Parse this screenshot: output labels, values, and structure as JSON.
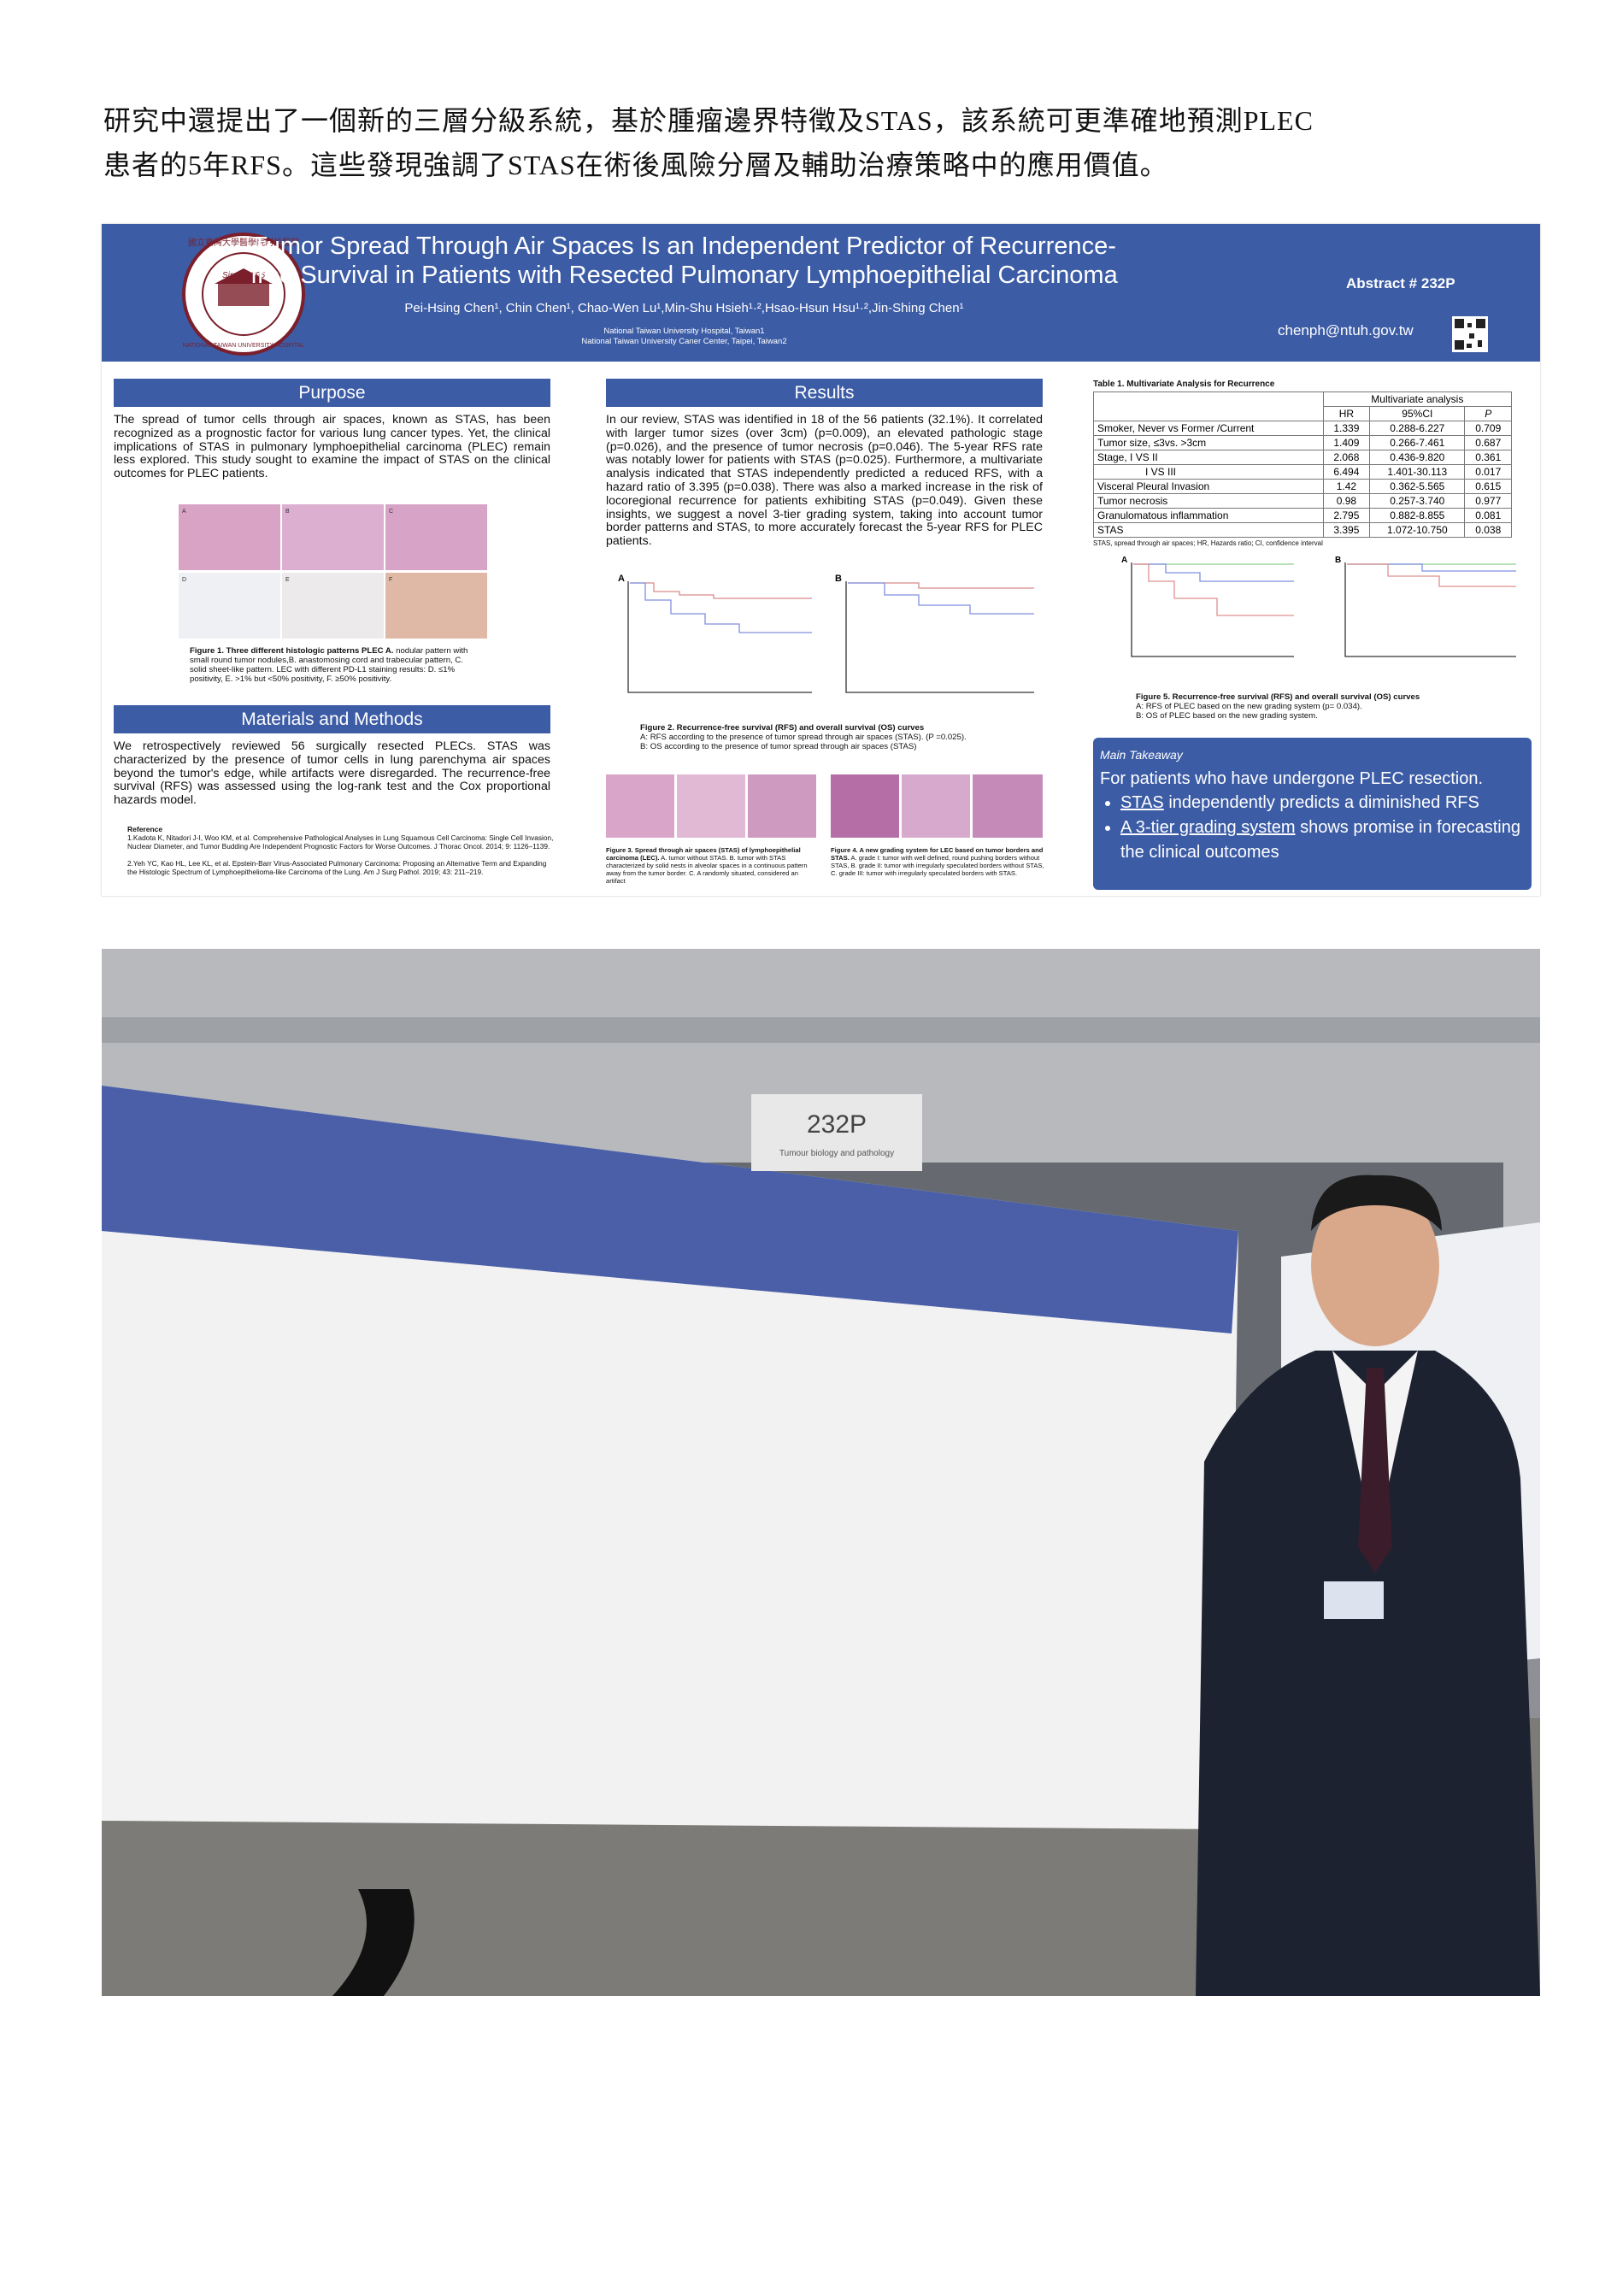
{
  "intro": [
    "研究中還提出了一個新的三層分級系統，基於腫瘤邊界特徵及STAS，該系統可更準確地預測PLEC",
    "患者的5年RFS。這些發現強調了STAS在術後風險分層及輔助治療策略中的應用價值。"
  ],
  "poster": {
    "title": [
      "Tumor Spread Through Air Spaces Is an Independent Predictor of Recurrence-",
      "free Survival in Patients with Resected Pulmonary Lymphoepithelial Carcinoma"
    ],
    "authors": "Pei-Hsing Chen¹, Chin Chen¹, Chao-Wen Lu¹,Min-Shu Hsieh¹·²,Hsao-Hsun Hsu¹·²,Jin-Shing Chen¹",
    "affiliations": [
      "National Taiwan University Hospital, Taiwan1",
      "National Taiwan University Caner Center, Taipei, Taiwan2"
    ],
    "abstract": "Abstract # 232P",
    "email": "chenph@ntuh.gov.tw",
    "logo": {
      "top": "國立臺灣大學醫學院附設醫院",
      "since": "Since 1895",
      "bottom": "NATIONAL TAIWAN UNIVERSITY HOSPITAL"
    },
    "purpose": {
      "heading": "Purpose",
      "text": "The spread of tumor cells through air spaces, known as STAS, has been recognized as a prognostic factor for various lung cancer types. Yet, the clinical implications of STAS in pulmonary lymphoepithelial carcinoma (PLEC) remain less explored. This study sought to examine the impact of STAS on the clinical outcomes for PLEC patients."
    },
    "figure1": {
      "panels": [
        "A",
        "B",
        "C",
        "D",
        "E",
        "F"
      ],
      "caption_title": "Figure 1.  Three different histologic patterns PLEC A.",
      "caption": " nodular pattern with small round tumor nodules,B. anastomosing cord and trabecular pattern, C. solid sheet-like pattern. LEC with different PD-L1 staining results: D. ≤1% positivity, E. >1% but <50% positivity, F. ≥50% positivity."
    },
    "methods": {
      "heading": "Materials and Methods",
      "text": "We retrospectively reviewed 56 surgically resected PLECs. STAS was characterized by the presence of tumor cells in lung parenchyma air spaces beyond the tumor's edge, while artifacts were disregarded. The recurrence-free survival (RFS) was assessed using the log-rank test and the Cox proportional hazards model."
    },
    "references": {
      "heading": "Reference",
      "items": [
        "1.Kadota K, Nitadori J-I, Woo KM, et al. Comprehensive Pathological Analyses in Lung Squamous Cell Carcinoma: Single Cell Invasion, Nuclear Diameter, and Tumor Budding Are Independent Prognostic Factors for Worse Outcomes. J Thorac Oncol. 2014; 9: 1126–1139.",
        "2.Yeh YC, Kao HL, Lee KL, et al. Epstein-Barr Virus-Associated Pulmonary Carcinoma: Proposing an Alternative Term and Expanding the Histologic Spectrum of Lymphoepithelioma-like Carcinoma of the Lung. Am J Surg Pathol. 2019; 43: 211–219."
      ]
    },
    "results": {
      "heading": "Results",
      "text": "In our review, STAS was identified in 18 of the 56 patients (32.1%). It correlated with larger tumor sizes (over 3cm) (p=0.009), an elevated pathologic stage (p=0.026), and the presence of tumor necrosis (p=0.046). The 5-year RFS rate was notably lower for patients with STAS (p=0.025). Furthermore, a multivariate analysis indicated that STAS independently predicted a reduced RFS, with a hazard ratio of 3.395 (p=0.038). There was also a marked increase in the risk of locoregional recurrence for patients exhibiting STAS (p=0.049). Given these insights, we suggest a novel 3-tier grading system, taking into account tumor border patterns and STAS, to more accurately forecast the 5-year RFS for PLEC patients."
    },
    "figure2": {
      "caption_title": "Figure 2. Recurrence-free survival (RFS) and overall survival (OS) curves",
      "lines": [
        "A: RFS according to the presence of tumor spread through air spaces (STAS). (P =0.025).",
        "B: OS according to the presence of tumor spread through air spaces (STAS)"
      ]
    },
    "figure3": {
      "caption_title": "Figure 3. Spread through air spaces (STAS) of lymphoepithelial carcinoma (LEC).",
      "caption": " A. tumor without STAS. B. tumor with STAS characterized by solid nests in alveolar spaces in a continuous pattern away from the tumor border. C. A randomly situated, considered an artifact"
    },
    "figure4": {
      "caption_title": "Figure 4. A new grading system for LEC based on tumor borders and STAS.",
      "caption": " A. grade I: tumor with well defined, round pushing borders without STAS, B. grade II: tumor with irregularly speculated borders without STAS, C. grade III: tumor with irregularly speculated borders with STAS."
    },
    "table": {
      "title": "Table 1. Multivariate Analysis for Recurrence",
      "group": "Multivariate analysis",
      "columns": [
        "HR",
        "95%CI",
        "P"
      ],
      "rows": [
        [
          "Smoker, Never vs Former /Current",
          "1.339",
          "0.288-6.227",
          "0.709"
        ],
        [
          "Tumor size, ≤3vs. >3cm",
          "1.409",
          "0.266-7.461",
          "0.687"
        ],
        [
          "Stage, I VS II",
          "2.068",
          "0.436-9.820",
          "0.361"
        ],
        [
          "I VS III",
          "6.494",
          "1.401-30.113",
          "0.017"
        ],
        [
          "Visceral Pleural Invasion",
          "1.42",
          "0.362-5.565",
          "0.615"
        ],
        [
          "Tumor necrosis",
          "0.98",
          "0.257-3.740",
          "0.977"
        ],
        [
          "Granulomatous inflammation",
          "2.795",
          "0.882-8.855",
          "0.081"
        ],
        [
          "STAS",
          "3.395",
          "1.072-10.750",
          "0.038"
        ]
      ],
      "note": "STAS, spread through air spaces;  HR, Hazards ratio;  CI, confidence interval"
    },
    "figure5": {
      "caption_title": "Figure 5. Recurrence-free survival (RFS) and overall survival (OS) curves",
      "lines": [
        "A: RFS of PLEC based on the new grading system (p= 0.034).",
        "B: OS of PLEC based on the new grading system."
      ]
    },
    "takeaway": {
      "heading": "Main Takeaway",
      "text": "For patients who have undergone PLEC resection.",
      "bullets": [
        {
          "underlined": "STAS",
          "rest": " independently predicts a diminished RFS"
        },
        {
          "underlined": "A 3-tier grading system",
          "rest": " shows promise in forecasting the clinical outcomes"
        }
      ]
    }
  },
  "photo": {
    "sign": "232P",
    "sign_sub": "Tumour biology and pathology"
  }
}
